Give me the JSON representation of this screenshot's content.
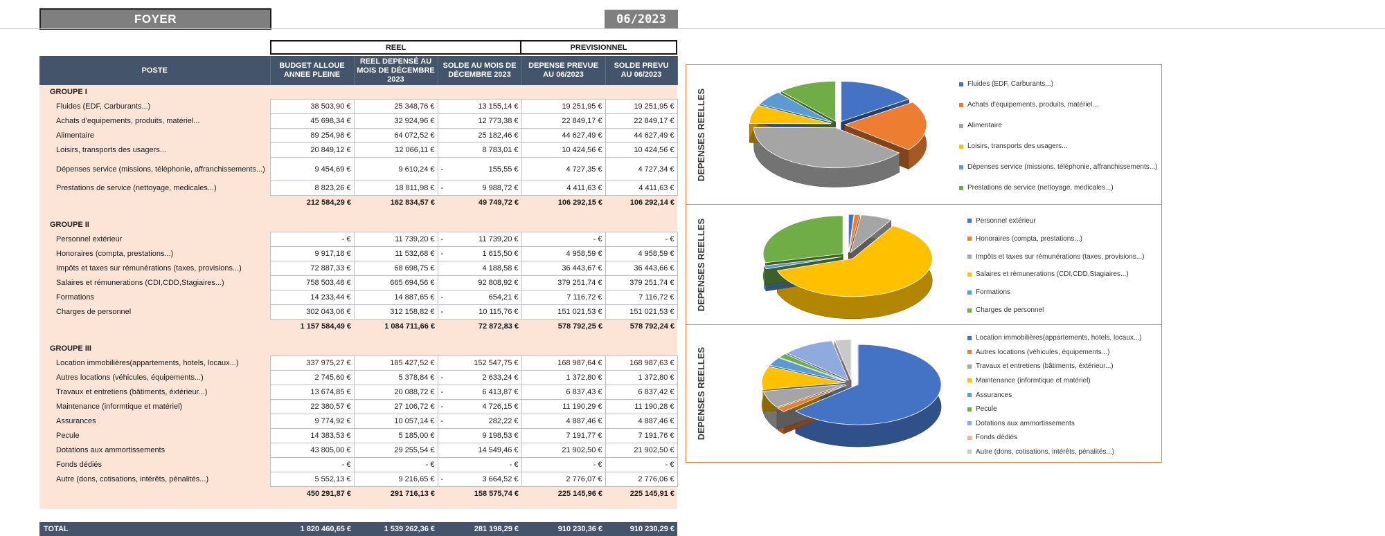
{
  "header": {
    "title": "FOYER",
    "period": "06/2023"
  },
  "group_headers": {
    "reel": "REEL",
    "previsionnel": "PREVISIONNEL"
  },
  "columns": [
    "POSTE",
    "BUDGET ALLOUE ANNEE PLEINE",
    "REEL DEPENSÉ AU MOIS DE DÉCEMBRE 2023",
    "SOLDE AU MOIS DE DÉCEMBRE 2023",
    "DEPENSE PREVUE AU 06/2023",
    "SOLDE PREVU AU 06/2023"
  ],
  "groups": [
    {
      "name": "GROUPE I",
      "rows": [
        {
          "label": "Fluides (EDF, Carburants...)",
          "budget": "38 503,90 €",
          "reel": "25 348,76 €",
          "solde_neg": "",
          "solde": "13 155,14 €",
          "prevue": "19 251,95 €",
          "solde_prevu": "19 251,95 €"
        },
        {
          "label": "Achats d'equipements, produits, matériel...",
          "budget": "45 698,34 €",
          "reel": "32 924,96 €",
          "solde_neg": "",
          "solde": "12 773,38 €",
          "prevue": "22 849,17 €",
          "solde_prevu": "22 849,17 €"
        },
        {
          "label": "Alimentaire",
          "budget": "89 254,98 €",
          "reel": "64 072,52 €",
          "solde_neg": "",
          "solde": "25 182,46 €",
          "prevue": "44 627,49 €",
          "solde_prevu": "44 627,49 €"
        },
        {
          "label": "Loisirs, transports des usagers...",
          "budget": "20 849,12 €",
          "reel": "12 066,11 €",
          "solde_neg": "",
          "solde": "8 783,01 €",
          "prevue": "10 424,56 €",
          "solde_prevu": "10 424,56 €"
        },
        {
          "label": "Dépenses service (missions, téléphonie, affranchissements...)",
          "budget": "9 454,69 €",
          "reel": "9 610,24 €",
          "solde_neg": "-",
          "solde": "155,55 €",
          "prevue": "4 727,35 €",
          "solde_prevu": "4 727,34 €"
        },
        {
          "label": "Prestations de service (nettoyage, medicales...)",
          "budget": "8 823,26 €",
          "reel": "18 811,98 €",
          "solde_neg": "-",
          "solde": "9 988,72 €",
          "prevue": "4 411,63 €",
          "solde_prevu": "4 411,63 €"
        }
      ],
      "totals": {
        "budget": "212 584,29 €",
        "reel": "162 834,57 €",
        "solde": "49 749,72 €",
        "prevue": "106 292,15 €",
        "solde_prevu": "106 292,14 €"
      }
    },
    {
      "name": "GROUPE II",
      "rows": [
        {
          "label": "Personnel extérieur",
          "budget": "- €",
          "reel": "11 739,20 €",
          "solde_neg": "-",
          "solde": "11 739,20 €",
          "prevue": "- €",
          "solde_prevu": "- €"
        },
        {
          "label": "Honoraires (compta, prestations...)",
          "budget": "9 917,18 €",
          "reel": "11 532,68 €",
          "solde_neg": "-",
          "solde": "1 615,50 €",
          "prevue": "4 958,59 €",
          "solde_prevu": "4 958,59 €"
        },
        {
          "label": "Impôts et taxes sur rémunérations (taxes, provisions...)",
          "budget": "72 887,33 €",
          "reel": "68 698,75 €",
          "solde_neg": "",
          "solde": "4 188,58 €",
          "prevue": "36 443,67 €",
          "solde_prevu": "36 443,66 €"
        },
        {
          "label": "Salaires et rémunerations (CDI,CDD,Stagiaires...)",
          "budget": "758 503,48 €",
          "reel": "665 694,56 €",
          "solde_neg": "",
          "solde": "92 808,92 €",
          "prevue": "379 251,74 €",
          "solde_prevu": "379 251,74 €"
        },
        {
          "label": "Formations",
          "budget": "14 233,44 €",
          "reel": "14 887,65 €",
          "solde_neg": "-",
          "solde": "654,21 €",
          "prevue": "7 116,72 €",
          "solde_prevu": "7 116,72 €"
        },
        {
          "label": "Charges de personnel",
          "budget": "302 043,06 €",
          "reel": "312 158,82 €",
          "solde_neg": "-",
          "solde": "10 115,76 €",
          "prevue": "151 021,53 €",
          "solde_prevu": "151 021,53 €"
        }
      ],
      "totals": {
        "budget": "1 157 584,49 €",
        "reel": "1 084 711,66 €",
        "solde": "72 872,83 €",
        "prevue": "578 792,25 €",
        "solde_prevu": "578 792,24 €"
      }
    },
    {
      "name": "GROUPE III",
      "rows": [
        {
          "label": "Location immobilières(appartements, hotels, locaux...)",
          "budget": "337 975,27 €",
          "reel": "185 427,52 €",
          "solde_neg": "",
          "solde": "152 547,75 €",
          "prevue": "168 987,64 €",
          "solde_prevu": "168 987,63 €"
        },
        {
          "label": "Autres locations (véhicules, équipements...)",
          "budget": "2 745,60 €",
          "reel": "5 378,84 €",
          "solde_neg": "-",
          "solde": "2 633,24 €",
          "prevue": "1 372,80 €",
          "solde_prevu": "1 372,80 €"
        },
        {
          "label": "Travaux et entretiens (bâtiments, éxtérieur...)",
          "budget": "13 674,85 €",
          "reel": "20 088,72 €",
          "solde_neg": "-",
          "solde": "6 413,87 €",
          "prevue": "6 837,43 €",
          "solde_prevu": "6 837,42 €"
        },
        {
          "label": "Maintenance (informtique et matériel)",
          "budget": "22 380,57 €",
          "reel": "27 106,72 €",
          "solde_neg": "-",
          "solde": "4 726,15 €",
          "prevue": "11 190,29 €",
          "solde_prevu": "11 190,28 €"
        },
        {
          "label": "Assurances",
          "budget": "9 774,92 €",
          "reel": "10 057,14 €",
          "solde_neg": "-",
          "solde": "282,22 €",
          "prevue": "4 887,46 €",
          "solde_prevu": "4 887,46 €"
        },
        {
          "label": "Pecule",
          "budget": "14 383,53 €",
          "reel": "5 185,00 €",
          "solde_neg": "",
          "solde": "9 198,53 €",
          "prevue": "7 191,77 €",
          "solde_prevu": "7 191,76 €"
        },
        {
          "label": "Dotations aux ammortissements",
          "budget": "43 805,00 €",
          "reel": "29 255,54 €",
          "solde_neg": "",
          "solde": "14 549,46 €",
          "prevue": "21 902,50 €",
          "solde_prevu": "21 902,50 €"
        },
        {
          "label": "Fonds dédiés",
          "budget": "- €",
          "reel": "- €",
          "solde_neg": "",
          "solde": "- €",
          "prevue": "- €",
          "solde_prevu": "- €"
        },
        {
          "label": "Autre (dons, cotisations, intérêts, pénalités...)",
          "budget": "5 552,13 €",
          "reel": "9 216,65 €",
          "solde_neg": "-",
          "solde": "3 664,52 €",
          "prevue": "2 776,07 €",
          "solde_prevu": "2 776,06 €"
        }
      ],
      "totals": {
        "budget": "450 291,87 €",
        "reel": "291 716,13 €",
        "solde": "158 575,74 €",
        "prevue": "225 145,96 €",
        "solde_prevu": "225 145,91 €"
      }
    }
  ],
  "grand_total": {
    "label": "TOTAL",
    "budget": "1 820 460,65 €",
    "reel": "1 539 262,36 €",
    "solde": "281 198,29 €",
    "prevue": "910 230,36 €",
    "solde_prevu": "910 230,29 €"
  },
  "charts": [
    {
      "side_label": "DEPENSES REELLES",
      "chart_data": {
        "type": "pie",
        "categories": [
          "Fluides (EDF, Carburants...)",
          "Achats d'equipements, produits, matériel...",
          "Alimentaire",
          "Loisirs, transports des usagers...",
          "Dépenses service (missions, téléphonie, affranchissements...)",
          "Prestations de service (nettoyage, medicales...)"
        ],
        "values": [
          25348.76,
          32924.96,
          64072.52,
          12066.11,
          9610.24,
          18811.98
        ],
        "colors": [
          "#4472c4",
          "#ed7d31",
          "#a5a5a5",
          "#ffc000",
          "#5b9bd5",
          "#70ad47"
        ],
        "legend": "right"
      }
    },
    {
      "side_label": "DEPENSES REELLES",
      "chart_data": {
        "type": "pie",
        "categories": [
          "Personnel extérieur",
          "Honoraires (compta, prestations...)",
          "Impôts et taxes sur rémunérations (taxes, provisions...)",
          "Salaires et rémunerations (CDI,CDD,Stagiaires...)",
          "Formations",
          "Charges de personnel"
        ],
        "values": [
          11739.2,
          11532.68,
          68698.75,
          665694.56,
          14887.65,
          312158.82
        ],
        "colors": [
          "#4472c4",
          "#ed7d31",
          "#a5a5a5",
          "#ffc000",
          "#5b9bd5",
          "#70ad47"
        ],
        "legend": "right"
      }
    },
    {
      "side_label": "DEPENSES REELLES",
      "chart_data": {
        "type": "pie",
        "categories": [
          "Location immobilières(appartements, hotels, locaux...)",
          "Autres locations (véhicules, équipements...)",
          "Travaux et entretiens (bâtiments, éxtérieur...)",
          "Maintenance (informtique et matériel)",
          "Assurances",
          "Pecule",
          "Dotations aux ammortissements",
          "Fonds dédiés",
          "Autre (dons, cotisations, intérêts, pénalités...)"
        ],
        "values": [
          185427.52,
          5378.84,
          20088.72,
          27106.72,
          10057.14,
          5185.0,
          29255.54,
          0,
          9216.65
        ],
        "colors": [
          "#4472c4",
          "#ed7d31",
          "#a5a5a5",
          "#ffc000",
          "#5b9bd5",
          "#70ad47",
          "#8faadc",
          "#f4b183",
          "#c9c9c9"
        ],
        "legend": "right"
      }
    }
  ]
}
